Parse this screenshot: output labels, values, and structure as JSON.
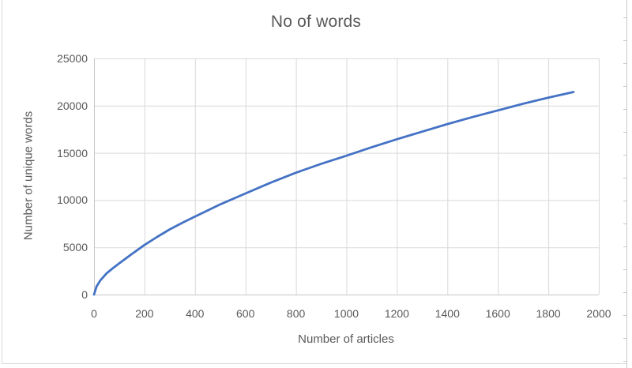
{
  "frame": {
    "background": "#ffffff",
    "border_color": "#d9d9d9",
    "worksheet_edge_color": "#c9c9c9"
  },
  "colors": {
    "series_line": "#4472C4",
    "gridline": "#d9d9d9",
    "axis_line": "#c6c6c6",
    "text": "#595959"
  },
  "chart_data": {
    "type": "line",
    "title": "No of words",
    "xlabel": "Number of articles",
    "ylabel": "Number of unique words",
    "xlim": [
      0,
      2000
    ],
    "ylim": [
      0,
      25000
    ],
    "grid": true,
    "legend_position": "none",
    "x_tick_values": [
      0,
      200,
      400,
      600,
      800,
      1000,
      1200,
      1400,
      1600,
      1800,
      2000
    ],
    "x_tick_labels": [
      "0",
      "200",
      "400",
      "600",
      "800",
      "1000",
      "1200",
      "1400",
      "1600",
      "1800",
      "2000"
    ],
    "y_tick_values": [
      0,
      5000,
      10000,
      15000,
      20000,
      25000
    ],
    "y_tick_labels": [
      "0",
      "5000",
      "10000",
      "15000",
      "20000",
      "25000"
    ],
    "series": [
      {
        "name": "Number of unique words",
        "color": "#4472C4",
        "points": [
          [
            0,
            0
          ],
          [
            10,
            850
          ],
          [
            25,
            1500
          ],
          [
            50,
            2250
          ],
          [
            75,
            2800
          ],
          [
            100,
            3300
          ],
          [
            150,
            4300
          ],
          [
            200,
            5250
          ],
          [
            250,
            6100
          ],
          [
            300,
            6900
          ],
          [
            350,
            7600
          ],
          [
            400,
            8250
          ],
          [
            500,
            9550
          ],
          [
            600,
            10700
          ],
          [
            700,
            11850
          ],
          [
            800,
            12900
          ],
          [
            900,
            13850
          ],
          [
            1000,
            14700
          ],
          [
            1100,
            15600
          ],
          [
            1200,
            16450
          ],
          [
            1300,
            17250
          ],
          [
            1400,
            18050
          ],
          [
            1500,
            18800
          ],
          [
            1600,
            19500
          ],
          [
            1700,
            20200
          ],
          [
            1800,
            20850
          ],
          [
            1900,
            21450
          ]
        ]
      }
    ]
  }
}
